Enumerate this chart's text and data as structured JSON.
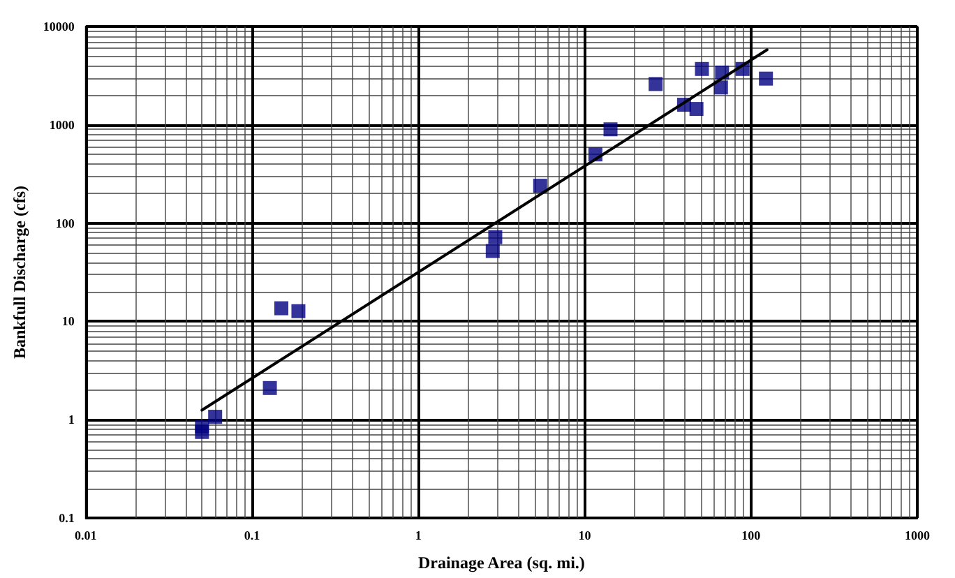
{
  "chart_data": {
    "type": "scatter",
    "xlabel": "Drainage Area (sq. mi.)",
    "ylabel": "Bankfull Discharge (cfs)",
    "log": "xy",
    "grid": true,
    "marker": "square",
    "xlim": [
      0.01,
      1000
    ],
    "xticks": [
      0.01,
      0.1,
      1,
      10,
      100,
      1000
    ],
    "ylim": [
      0.1,
      10000
    ],
    "yticks": [
      0.1,
      1,
      10,
      100,
      1000,
      10000
    ],
    "series": [
      {
        "color": "#000080",
        "x": [
          0.05,
          0.05,
          0.06,
          0.128,
          0.15,
          0.19,
          2.8,
          2.9,
          5.4,
          11.6,
          14.3,
          26.7,
          39.6,
          47,
          50.7,
          66,
          67,
          89,
          123
        ],
        "values": [
          0.85,
          0.75,
          1.07,
          2.1,
          13.6,
          12.7,
          52,
          72,
          240,
          500,
          900,
          2600,
          1600,
          1450,
          3700,
          2400,
          3400,
          3700,
          2950
        ]
      },
      {
        "type": "line",
        "color": "#000000",
        "marker": "none",
        "line_style": "solid",
        "x": [
          0.05,
          125
        ],
        "values": [
          1.25,
          5800
        ]
      }
    ]
  }
}
